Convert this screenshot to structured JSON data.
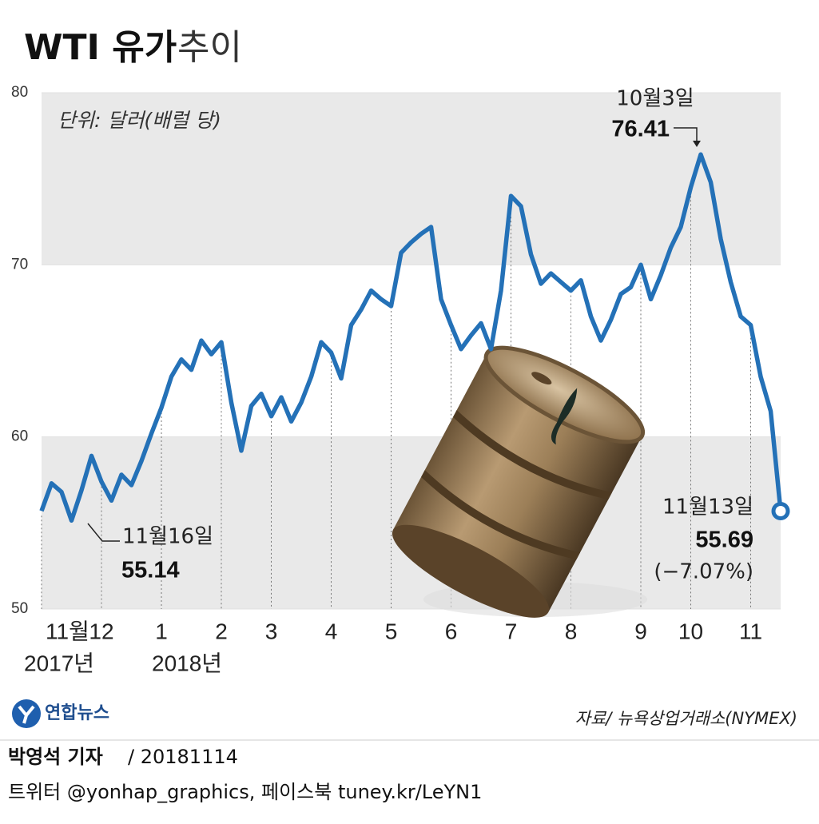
{
  "chart_data": {
    "type": "line",
    "title": "WTI 유가",
    "title_suffix": "추이",
    "unit": "단위: 달러(배럴 당)",
    "categories": [
      "11월",
      null,
      null,
      null,
      null,
      null,
      "12",
      null,
      null,
      null,
      null,
      null,
      "1",
      null,
      null,
      null,
      null,
      null,
      "2",
      null,
      null,
      null,
      null,
      "3",
      null,
      null,
      null,
      null,
      null,
      "4",
      null,
      null,
      null,
      null,
      null,
      "5",
      null,
      null,
      null,
      null,
      null,
      "6",
      null,
      null,
      null,
      null,
      null,
      "7",
      null,
      null,
      null,
      null,
      null,
      "8",
      null,
      null,
      null,
      null,
      null,
      null,
      "9",
      null,
      null,
      null,
      null,
      "10",
      null,
      null,
      null,
      null,
      null,
      "11",
      null,
      null,
      null
    ],
    "year_labels": [
      "2017년",
      "2018년"
    ],
    "series": [
      {
        "name": "WTI",
        "color": "#2471b7",
        "values": [
          55.7,
          57.3,
          56.8,
          55.14,
          56.9,
          58.9,
          57.4,
          56.3,
          57.8,
          57.2,
          58.6,
          60.2,
          61.7,
          63.5,
          64.5,
          63.9,
          65.6,
          64.8,
          65.5,
          62.0,
          59.2,
          61.8,
          62.5,
          61.2,
          62.3,
          60.9,
          62.0,
          63.5,
          65.5,
          64.9,
          63.4,
          66.5,
          67.4,
          68.5,
          68.0,
          67.6,
          70.7,
          71.3,
          71.8,
          72.2,
          68.0,
          66.5,
          65.1,
          65.9,
          66.6,
          65.1,
          68.5,
          74.0,
          73.4,
          70.6,
          68.9,
          69.5,
          69.0,
          68.5,
          69.1,
          67.0,
          65.6,
          66.8,
          68.3,
          68.7,
          70.0,
          68.0,
          69.4,
          71.0,
          72.2,
          74.5,
          76.41,
          74.8,
          71.5,
          69.0,
          67.0,
          66.5,
          63.5,
          61.5,
          55.69
        ]
      }
    ],
    "annotations": [
      "11월16일",
      "10월3일",
      "11월13일",
      "(−7.07%)"
    ],
    "ylim": [
      50,
      80
    ],
    "yticks": [
      50,
      60,
      70,
      80
    ],
    "grid": true,
    "source": "자료/ 뉴욕상업거래소(NYMEX)",
    "logo": "연합뉴스",
    "byline": "박영석 기자",
    "date": "/ 20181114",
    "contact": "트위터 @yonhap_graphics, 페이스북 tuney.kr/LeYN1"
  }
}
